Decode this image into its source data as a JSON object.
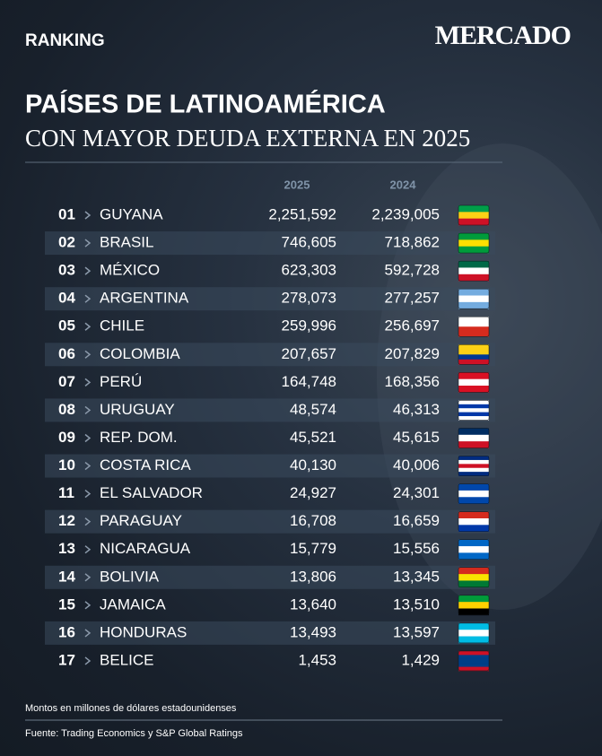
{
  "header": {
    "label": "RANKING",
    "brand": "MERCADO"
  },
  "title": {
    "line1": "PAÍSES DE LATINOAMÉRICA",
    "line2": "CON MAYOR DEUDA EXTERNA EN 2025"
  },
  "table": {
    "columns": [
      "2025",
      "2024"
    ],
    "rows": [
      [
        "01",
        "GUYANA",
        "2,251,592",
        "2,239,005"
      ],
      [
        "02",
        "BRASIL",
        "746,605",
        "718,862"
      ],
      [
        "03",
        "MÉXICO",
        "623,303",
        "592,728"
      ],
      [
        "04",
        "ARGENTINA",
        "278,073",
        "277,257"
      ],
      [
        "05",
        "CHILE",
        "259,996",
        "256,697"
      ],
      [
        "06",
        "COLOMBIA",
        "207,657",
        "207,829"
      ],
      [
        "07",
        "PERÚ",
        "164,748",
        "168,356"
      ],
      [
        "08",
        "URUGUAY",
        "48,574",
        "46,313"
      ],
      [
        "09",
        "REP. DOM.",
        "45,521",
        "45,615"
      ],
      [
        "10",
        "COSTA RICA",
        "40,130",
        "40,006"
      ],
      [
        "11",
        "EL SALVADOR",
        "24,927",
        "24,301"
      ],
      [
        "12",
        "PARAGUAY",
        "16,708",
        "16,659"
      ],
      [
        "13",
        "NICARAGUA",
        "15,779",
        "15,556"
      ],
      [
        "14",
        "BOLIVIA",
        "13,806",
        "13,345"
      ],
      [
        "15",
        "JAMAICA",
        "13,640",
        "13,510"
      ],
      [
        "16",
        "HONDURAS",
        "13,493",
        "13,597"
      ],
      [
        "17",
        "BELICE",
        "1,453",
        "1,429"
      ]
    ]
  },
  "notes": {
    "units": "Montos en millones de dólares estadounidenses",
    "source": "Fuente:  Trading Economics y S&P Global Ratings"
  }
}
